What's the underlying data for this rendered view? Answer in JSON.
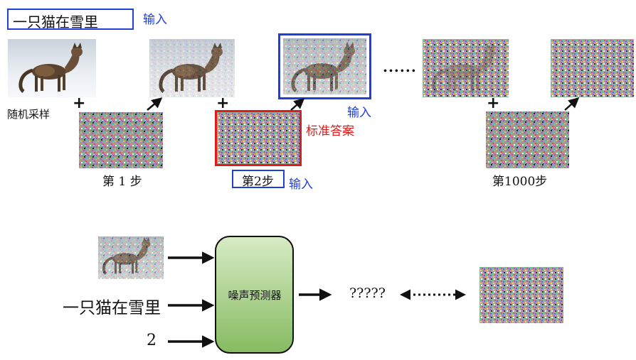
{
  "top": {
    "prompt": "一只猫在雪里",
    "input_label_prompt": "输入",
    "random_sample_label": "随机采样",
    "plus": "+",
    "ellipsis": "......",
    "input_label_image": "输入",
    "answer_label": "标准答案",
    "step1_label": "第 1 步",
    "step2_label": "第2步",
    "input_label_step": "输入",
    "step1000_label": "第1000步"
  },
  "bottom": {
    "text_input": "一只猫在雪里",
    "step_input": "2",
    "predictor_label": "噪声预测器",
    "output_label": "?????"
  },
  "colors": {
    "blue": "#1f3fd6",
    "red": "#e11b1b",
    "predictor_fill_top": "#cfe5b8",
    "predictor_fill_bottom": "#7fb65a"
  }
}
